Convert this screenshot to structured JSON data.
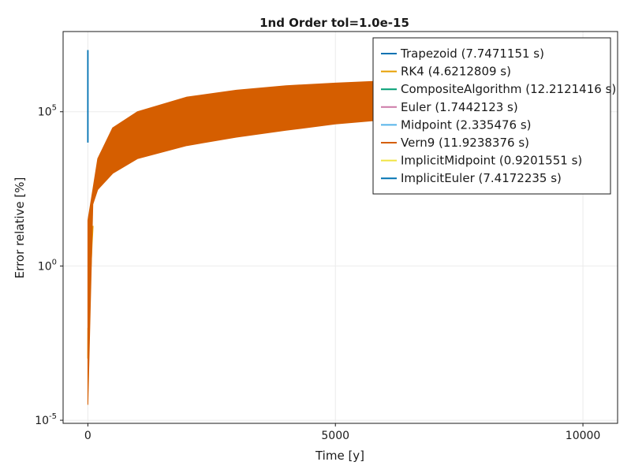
{
  "chart_data": {
    "type": "line",
    "title": "1nd Order tol=1.0e-15",
    "xlabel": "Time [y]",
    "ylabel": "Error relative [%]",
    "x_ticks": [
      "0",
      "5000",
      "10000"
    ],
    "y_ticks": [
      {
        "base": "10",
        "exp": "5"
      },
      {
        "base": "10",
        "exp": "0"
      },
      {
        "base": "10",
        "exp": "-5"
      }
    ],
    "xlim": [
      -500,
      10700
    ],
    "ylim_log10": [
      -5.1,
      7.6
    ],
    "grid": true,
    "legend_position": "top-right",
    "series": [
      {
        "name": "Trapezoid (7.7471151 s)",
        "color": "#0072b2",
        "kind": "spike",
        "x": [
          0,
          0,
          0,
          0
        ],
        "y": [
          10000000.0,
          10000.0,
          100000.0,
          3000000.0
        ]
      },
      {
        "name": "RK4 (4.6212809 s)",
        "color": "#e69f00",
        "kind": "spike",
        "x": [
          2,
          5,
          10,
          20,
          30,
          40,
          60,
          80,
          100
        ],
        "y": [
          0.001,
          0.01,
          0.002,
          0.1,
          0.02,
          0.5,
          1,
          5,
          20
        ]
      },
      {
        "name": "CompositeAlgorithm (12.2121416 s)",
        "color": "#009e73",
        "kind": "line",
        "x": [],
        "y": []
      },
      {
        "name": "Euler (1.7442123 s)",
        "color": "#cc79a7",
        "kind": "line",
        "x": [],
        "y": []
      },
      {
        "name": "Midpoint (2.335476 s)",
        "color": "#56b4e9",
        "kind": "line",
        "x": [],
        "y": []
      },
      {
        "name": "Vern9 (11.9238376 s)",
        "color": "#d55e00",
        "kind": "band",
        "x": [
          0,
          100,
          200,
          500,
          1000,
          2000,
          3000,
          4000,
          5000,
          6000,
          7000,
          7500,
          8000
        ],
        "y_low": [
          3.16e-05,
          100,
          300,
          1000,
          3000,
          8000,
          15000,
          25000,
          40000,
          55000,
          70000,
          80000,
          90000
        ],
        "y_high": [
          30,
          300,
          3000,
          30000,
          100000,
          300000,
          500000,
          700000,
          850000,
          1000000,
          1100000,
          1150000,
          1200000
        ]
      },
      {
        "name": "ImplicitMidpoint (0.9201551 s)",
        "color": "#f0e442",
        "kind": "line",
        "x": [],
        "y": []
      },
      {
        "name": "ImplicitEuler (7.4172235 s)",
        "color": "#0072b2",
        "kind": "line",
        "x": [],
        "y": []
      }
    ]
  }
}
